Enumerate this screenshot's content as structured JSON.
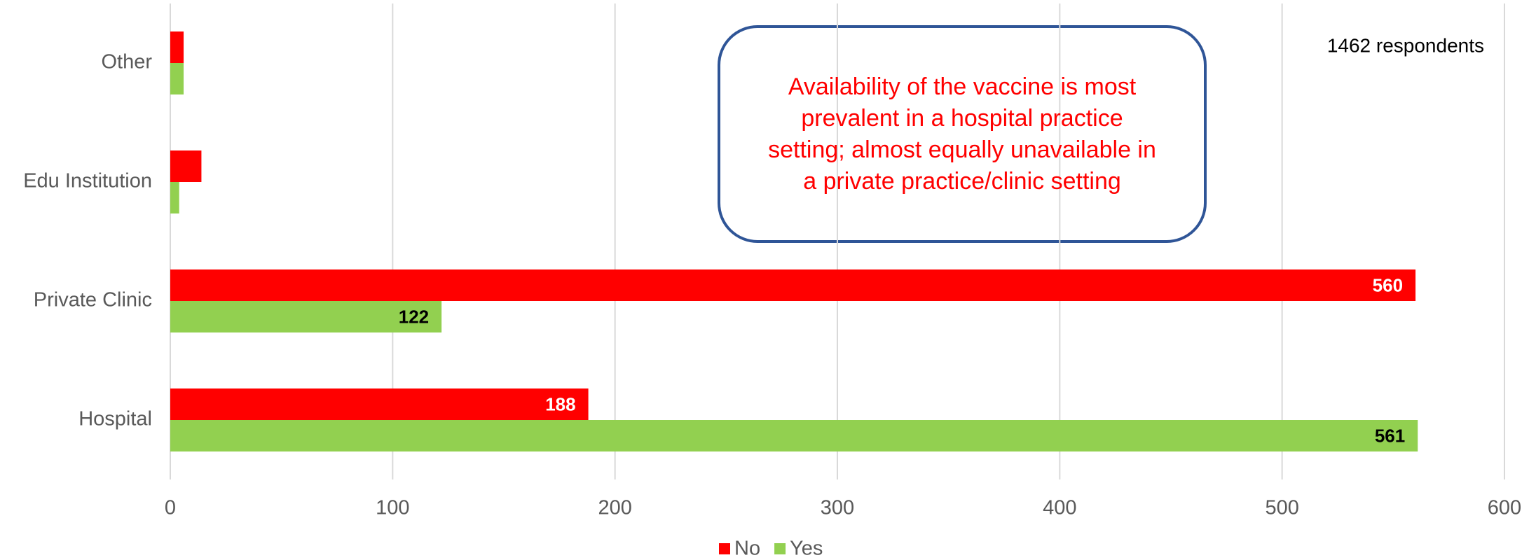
{
  "chart_data": {
    "type": "barh",
    "categories": [
      "Hospital",
      "Private Clinic",
      "Edu Institution",
      "Other"
    ],
    "series": [
      {
        "name": "No",
        "color": "#ff0000",
        "values": [
          188,
          560,
          14,
          6
        ]
      },
      {
        "name": "Yes",
        "color": "#92d050",
        "values": [
          561,
          122,
          4,
          6
        ]
      }
    ],
    "xlim": [
      0,
      600
    ],
    "xticks": [
      0,
      100,
      200,
      300,
      400,
      500,
      600
    ],
    "grid": true,
    "legend": "bottom",
    "annotation": [
      "Availability of the vaccine is most",
      "prevalent in a hospital practice",
      "setting; almost equally unavailable in",
      "a private practice/clinic setting"
    ],
    "note": "1462 respondents"
  }
}
